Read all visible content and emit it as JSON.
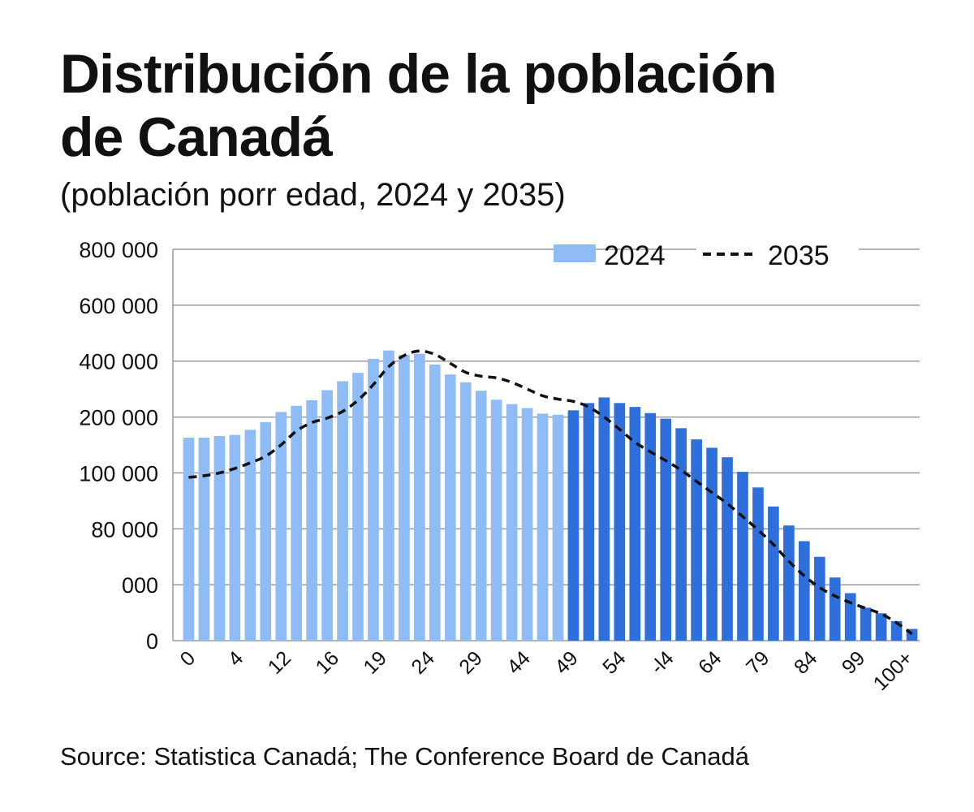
{
  "chart_data": {
    "type": "bar",
    "title_line1": "Distribución de la población",
    "title_line2": "de Canadá",
    "subtitle": "(población porr edad, 2024 y 2035)",
    "source": "Source: Statistica Canadá; The Conference Board de Canadá",
    "y_tick_labels": [
      "0",
      "000",
      "80 000",
      "100 000",
      "200 000",
      "400 000",
      "600 000",
      "800 000"
    ],
    "x_tick_labels": [
      "0",
      "4",
      "12",
      "16",
      "19",
      "24",
      "29",
      "44",
      "49",
      "54",
      "-l4",
      "64",
      "79",
      "84",
      "99",
      "100+"
    ],
    "ylim": [
      0,
      7
    ],
    "y_scale_note": "values expressed in tick-index units (axis labels are non-linear as printed)",
    "legend": {
      "series_2024": "2024",
      "series_2035": "2035",
      "placement": "top-right"
    },
    "colors": {
      "light": "#8fbcf5",
      "dark": "#2f6fdc",
      "line": "#111111",
      "grid": "#9a9a9a"
    },
    "series": [
      {
        "name": "2024",
        "values": [
          3.63,
          3.63,
          3.66,
          3.68,
          3.77,
          3.91,
          4.09,
          4.2,
          4.3,
          4.48,
          4.64,
          4.79,
          5.04,
          5.19,
          5.11,
          5.13,
          4.94,
          4.76,
          4.62,
          4.47,
          4.31,
          4.23,
          4.16,
          4.06,
          4.04,
          4.12,
          4.25,
          4.35,
          4.25,
          4.18,
          4.07,
          3.97,
          3.8,
          3.6,
          3.45,
          3.28,
          3.02,
          2.74,
          2.4,
          2.06,
          1.78,
          1.5,
          1.13,
          0.85,
          0.59,
          0.49,
          0.35,
          0.21
        ]
      },
      {
        "name": "2035",
        "values": [
          2.92,
          2.95,
          3.0,
          3.08,
          3.18,
          3.3,
          3.5,
          3.75,
          3.9,
          3.98,
          4.1,
          4.3,
          4.58,
          4.9,
          5.1,
          5.18,
          5.12,
          4.96,
          4.8,
          4.73,
          4.7,
          4.62,
          4.5,
          4.38,
          4.32,
          4.28,
          4.18,
          4.0,
          3.78,
          3.55,
          3.38,
          3.22,
          3.05,
          2.85,
          2.65,
          2.45,
          2.22,
          1.98,
          1.72,
          1.42,
          1.16,
          0.95,
          0.8,
          0.68,
          0.58,
          0.48,
          0.32,
          0.12
        ]
      }
    ]
  }
}
